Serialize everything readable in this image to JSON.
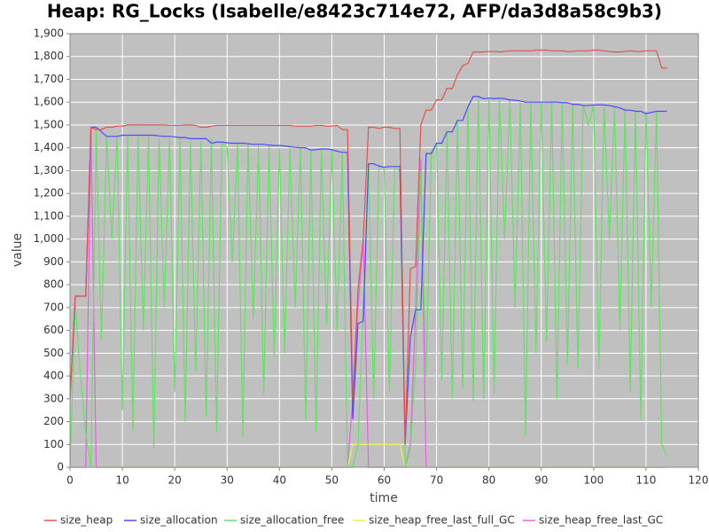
{
  "chart_data": {
    "type": "line",
    "title": "Heap: RG_Locks (Isabelle/e8423c714e72, AFP/da3d8a58c9b3)",
    "x_label": "time",
    "y_label": "value",
    "xlim": [
      0,
      120
    ],
    "xticks": [
      0,
      10,
      20,
      30,
      40,
      50,
      60,
      70,
      80,
      90,
      100,
      110,
      120
    ],
    "ylim": [
      0,
      1900
    ],
    "yticks": [
      0,
      100,
      200,
      300,
      400,
      500,
      600,
      700,
      800,
      900,
      {
        "value": 1000,
        "label": "1,000"
      },
      {
        "value": 1100,
        "label": "1,100"
      },
      {
        "value": 1200,
        "label": "1,200"
      },
      {
        "value": 1300,
        "label": "1,300"
      },
      {
        "value": 1400,
        "label": "1,400"
      },
      {
        "value": 1500,
        "label": "1,500"
      },
      {
        "value": 1600,
        "label": "1,600"
      },
      {
        "value": 1700,
        "label": "1,700"
      },
      {
        "value": 1800,
        "label": "1,800"
      },
      {
        "value": 1900,
        "label": "1,900"
      }
    ],
    "grid": true,
    "legend": "bottom",
    "x": [
      0,
      1,
      2,
      3,
      4,
      5,
      6,
      7,
      8,
      9,
      10,
      11,
      12,
      13,
      14,
      15,
      16,
      17,
      18,
      19,
      20,
      21,
      22,
      23,
      24,
      25,
      26,
      27,
      28,
      29,
      30,
      31,
      32,
      33,
      34,
      35,
      36,
      37,
      38,
      39,
      40,
      41,
      42,
      43,
      44,
      45,
      46,
      47,
      48,
      49,
      50,
      51,
      52,
      53,
      54,
      55,
      56,
      57,
      58,
      59,
      60,
      61,
      62,
      63,
      64,
      65,
      66,
      67,
      68,
      69,
      70,
      71,
      72,
      73,
      74,
      75,
      76,
      77,
      78,
      79,
      80,
      81,
      82,
      83,
      84,
      85,
      86,
      87,
      88,
      89,
      90,
      91,
      92,
      93,
      94,
      95,
      96,
      97,
      98,
      99,
      100,
      101,
      102,
      103,
      104,
      105,
      106,
      107,
      108,
      109,
      110,
      111,
      112,
      113,
      114
    ],
    "series": [
      {
        "name": "size_heap",
        "color": "#e85050",
        "values": [
          300,
          750,
          750,
          750,
          1490,
          1480,
          1480,
          1490,
          1490,
          1495,
          1495,
          1500,
          1500,
          1500,
          1500,
          1500,
          1500,
          1500,
          1500,
          1498,
          1498,
          1498,
          1500,
          1500,
          1498,
          1490,
          1490,
          1495,
          1498,
          1498,
          1498,
          1498,
          1498,
          1498,
          1498,
          1498,
          1498,
          1498,
          1498,
          1498,
          1498,
          1498,
          1498,
          1495,
          1495,
          1495,
          1495,
          1498,
          1498,
          1495,
          1495,
          1498,
          1480,
          1480,
          300,
          780,
          1000,
          1490,
          1490,
          1485,
          1490,
          1490,
          1485,
          1485,
          100,
          870,
          880,
          1500,
          1565,
          1565,
          1610,
          1610,
          1660,
          1660,
          1720,
          1760,
          1770,
          1820,
          1820,
          1820,
          1822,
          1822,
          1820,
          1822,
          1825,
          1825,
          1825,
          1825,
          1825,
          1828,
          1828,
          1828,
          1825,
          1825,
          1825,
          1822,
          1822,
          1825,
          1825,
          1825,
          1828,
          1828,
          1825,
          1822,
          1820,
          1820,
          1822,
          1825,
          1822,
          1822,
          1825,
          1825,
          1825,
          1750,
          1750
        ]
      },
      {
        "name": "size_allocation",
        "color": "#4a4aff",
        "values": [
          300,
          750,
          750,
          750,
          1490,
          1490,
          1470,
          1450,
          1450,
          1450,
          1455,
          1455,
          1455,
          1455,
          1455,
          1455,
          1455,
          1452,
          1450,
          1450,
          1448,
          1445,
          1445,
          1440,
          1440,
          1440,
          1440,
          1420,
          1425,
          1425,
          1422,
          1420,
          1420,
          1420,
          1418,
          1415,
          1415,
          1415,
          1412,
          1410,
          1410,
          1408,
          1405,
          1402,
          1400,
          1400,
          1390,
          1392,
          1395,
          1395,
          1392,
          1385,
          1380,
          1380,
          210,
          630,
          640,
          1330,
          1330,
          1320,
          1315,
          1318,
          1318,
          1318,
          100,
          570,
          690,
          690,
          1375,
          1375,
          1420,
          1420,
          1470,
          1470,
          1520,
          1520,
          1580,
          1625,
          1625,
          1615,
          1618,
          1615,
          1618,
          1615,
          1610,
          1608,
          1605,
          1600,
          1600,
          1600,
          1600,
          1600,
          1600,
          1600,
          1598,
          1598,
          1590,
          1590,
          1585,
          1585,
          1588,
          1588,
          1588,
          1585,
          1580,
          1575,
          1565,
          1565,
          1560,
          1560,
          1550,
          1555,
          1560,
          1560,
          1560
        ]
      },
      {
        "name": "size_allocation_free",
        "color": "#66e066",
        "values": [
          0,
          720,
          400,
          150,
          0,
          1470,
          560,
          1450,
          1000,
          1450,
          250,
          1450,
          160,
          1450,
          600,
          1450,
          80,
          1440,
          700,
          1440,
          330,
          1440,
          200,
          1430,
          420,
          1430,
          220,
          1440,
          150,
          1420,
          1400,
          900,
          1420,
          130,
          1420,
          650,
          1410,
          320,
          1410,
          480,
          1400,
          500,
          1400,
          700,
          1400,
          210,
          1390,
          150,
          1390,
          620,
          1390,
          600,
          1380,
          0,
          0,
          100,
          700,
          1330,
          300,
          1320,
          1310,
          330,
          1310,
          1300,
          0,
          80,
          450,
          1300,
          400,
          1370,
          1420,
          380,
          1470,
          300,
          1520,
          350,
          1580,
          290,
          1625,
          300,
          1615,
          320,
          1615,
          1000,
          1610,
          700,
          1600,
          140,
          1600,
          500,
          1600,
          550,
          1600,
          300,
          1595,
          450,
          1590,
          430,
          1590,
          1500,
          1585,
          430,
          1585,
          1000,
          1580,
          600,
          1570,
          330,
          1565,
          210,
          1560,
          700,
          1560,
          100,
          50
        ]
      },
      {
        "name": "size_heap_free_last_full_GC",
        "color": "#f0f050",
        "values": [
          0,
          0,
          0,
          0,
          0,
          0,
          0,
          0,
          0,
          0,
          0,
          0,
          0,
          0,
          0,
          0,
          0,
          0,
          0,
          0,
          0,
          0,
          0,
          0,
          0,
          0,
          0,
          0,
          0,
          0,
          0,
          0,
          0,
          0,
          0,
          0,
          0,
          0,
          0,
          0,
          0,
          0,
          0,
          0,
          0,
          0,
          0,
          0,
          0,
          0,
          0,
          0,
          0,
          0,
          100,
          100,
          100,
          100,
          100,
          100,
          100,
          100,
          100,
          100,
          0,
          0,
          0,
          0,
          0,
          0,
          0,
          0,
          0,
          0,
          0,
          0,
          0,
          0,
          0,
          0,
          0,
          0,
          0,
          0,
          0,
          0,
          0,
          0,
          0,
          0,
          0,
          0,
          0,
          0,
          0,
          0,
          0,
          0,
          0,
          0,
          0,
          0,
          0,
          0,
          0,
          0,
          0,
          0,
          0,
          0,
          0,
          0,
          0,
          0,
          0
        ]
      },
      {
        "name": "size_heap_free_last_GC",
        "color": "#e860e8",
        "values": [
          0,
          0,
          0,
          0,
          1480,
          0,
          0,
          0,
          0,
          0,
          0,
          0,
          0,
          0,
          0,
          0,
          0,
          0,
          0,
          0,
          0,
          0,
          0,
          0,
          0,
          0,
          0,
          0,
          0,
          0,
          0,
          0,
          0,
          0,
          0,
          0,
          0,
          0,
          0,
          0,
          0,
          0,
          0,
          0,
          0,
          0,
          0,
          0,
          0,
          0,
          0,
          0,
          0,
          0,
          300,
          700,
          1000,
          0,
          0,
          0,
          0,
          0,
          0,
          0,
          0,
          100,
          690,
          1350,
          0,
          0,
          0,
          0,
          0,
          0,
          0,
          0,
          0,
          0,
          0,
          0,
          0,
          0,
          0,
          0,
          0,
          0,
          0,
          0,
          0,
          0,
          0,
          0,
          0,
          0,
          0,
          0,
          0,
          0,
          0,
          0,
          0,
          0,
          0,
          0,
          0,
          0,
          0,
          0,
          0,
          0,
          0,
          0,
          0,
          0,
          0
        ]
      }
    ]
  }
}
